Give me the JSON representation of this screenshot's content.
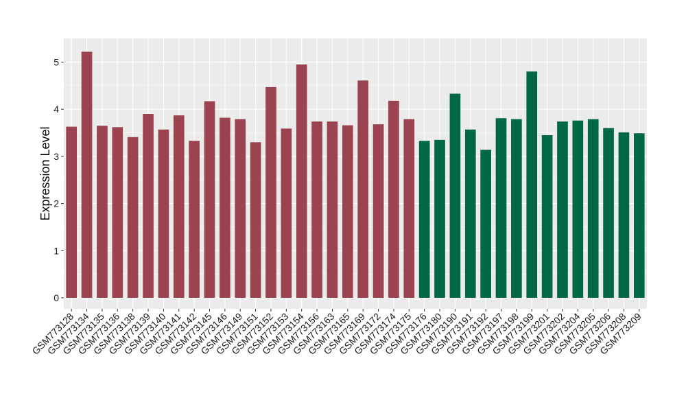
{
  "chart_data": {
    "type": "bar",
    "title": "",
    "xlabel": "",
    "ylabel": "Expression Level",
    "ylim": [
      0,
      5.5
    ],
    "yticks": [
      0,
      1,
      2,
      3,
      4,
      5
    ],
    "grid": true,
    "legend": "none",
    "categories": [
      "GSM773128",
      "GSM773134",
      "GSM773135",
      "GSM773136",
      "GSM773138",
      "GSM773139",
      "GSM773140",
      "GSM773141",
      "GSM773142",
      "GSM773145",
      "GSM773146",
      "GSM773149",
      "GSM773151",
      "GSM773152",
      "GSM773153",
      "GSM773154",
      "GSM773156",
      "GSM773163",
      "GSM773165",
      "GSM773169",
      "GSM773172",
      "GSM773174",
      "GSM773175",
      "GSM773176",
      "GSM773180",
      "GSM773190",
      "GSM773191",
      "GSM773192",
      "GSM773197",
      "GSM773198",
      "GSM773199",
      "GSM773201",
      "GSM773202",
      "GSM773204",
      "GSM773205",
      "GSM773206",
      "GSM773208",
      "GSM773209"
    ],
    "values": [
      3.63,
      5.22,
      3.65,
      3.62,
      3.41,
      3.9,
      3.57,
      3.87,
      3.33,
      4.17,
      3.82,
      3.79,
      3.3,
      4.47,
      3.59,
      4.95,
      3.74,
      3.74,
      3.66,
      4.61,
      3.68,
      4.18,
      3.79,
      3.33,
      3.35,
      4.33,
      3.57,
      3.14,
      3.81,
      3.79,
      4.8,
      3.45,
      3.74,
      3.76,
      3.79,
      3.6,
      3.51,
      3.49
    ],
    "group_colors": [
      "#9b4350",
      "#9b4350",
      "#9b4350",
      "#9b4350",
      "#9b4350",
      "#9b4350",
      "#9b4350",
      "#9b4350",
      "#9b4350",
      "#9b4350",
      "#9b4350",
      "#9b4350",
      "#9b4350",
      "#9b4350",
      "#9b4350",
      "#9b4350",
      "#9b4350",
      "#9b4350",
      "#9b4350",
      "#9b4350",
      "#9b4350",
      "#9b4350",
      "#9b4350",
      "#006846",
      "#006846",
      "#006846",
      "#006846",
      "#006846",
      "#006846",
      "#006846",
      "#006846",
      "#006846",
      "#006846",
      "#006846",
      "#006846",
      "#006846",
      "#006846",
      "#006846"
    ],
    "panel_background": "#ebebeb",
    "grid_color": "#ffffff"
  }
}
